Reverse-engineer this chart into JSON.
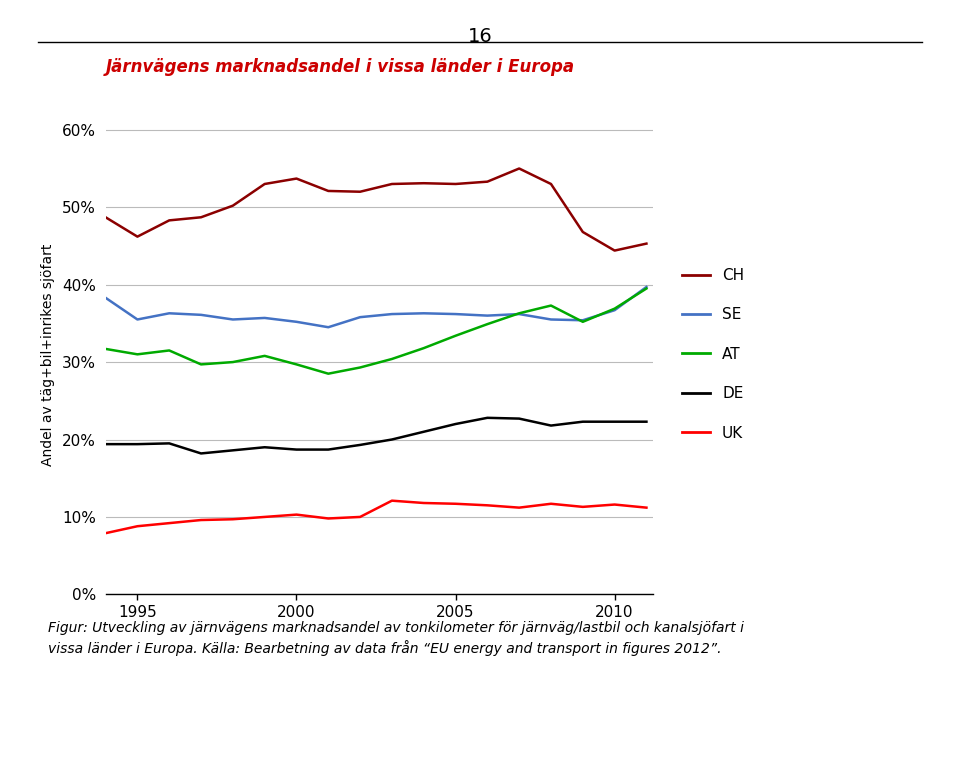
{
  "title": "Järnvägens marknadsandel i vissa länder i Europa",
  "title_color": "#CC0000",
  "ylabel": "Andel av täg+bil+inrikes sjöfart",
  "xlabel": "",
  "years": [
    1994,
    1995,
    1996,
    1997,
    1998,
    1999,
    2000,
    2001,
    2002,
    2003,
    2004,
    2005,
    2006,
    2007,
    2008,
    2009,
    2010,
    2011
  ],
  "CH": [
    0.487,
    0.462,
    0.483,
    0.487,
    0.502,
    0.53,
    0.537,
    0.521,
    0.52,
    0.53,
    0.531,
    0.53,
    0.533,
    0.55,
    0.53,
    0.468,
    0.444,
    0.453
  ],
  "SE": [
    0.383,
    0.355,
    0.363,
    0.361,
    0.355,
    0.357,
    0.352,
    0.345,
    0.358,
    0.362,
    0.363,
    0.362,
    0.36,
    0.362,
    0.355,
    0.354,
    0.367,
    0.397
  ],
  "AT": [
    0.317,
    0.31,
    0.315,
    0.297,
    0.3,
    0.308,
    0.297,
    0.285,
    0.293,
    0.304,
    0.318,
    0.334,
    0.349,
    0.363,
    0.373,
    0.352,
    0.369,
    0.395
  ],
  "DE": [
    0.194,
    0.194,
    0.195,
    0.182,
    0.186,
    0.19,
    0.187,
    0.187,
    0.193,
    0.2,
    0.21,
    0.22,
    0.228,
    0.227,
    0.218,
    0.223,
    0.223,
    0.223
  ],
  "UK": [
    0.079,
    0.088,
    0.092,
    0.096,
    0.097,
    0.1,
    0.103,
    0.098,
    0.1,
    0.121,
    0.118,
    0.117,
    0.115,
    0.112,
    0.117,
    0.113,
    0.116,
    0.112
  ],
  "CH_color": "#8B0000",
  "SE_color": "#4472C4",
  "AT_color": "#00AA00",
  "DE_color": "#000000",
  "UK_color": "#FF0000",
  "caption_line1": "Figur: Utveckling av järnvägens marknadsandel av tonkilometer för järnväg/lastbil och kanalsjöfart i",
  "caption_line2": "vissa länder i Europa. Källa: Bearbetning av data från “EU energy and transport in figures 2012”.",
  "page_number": "16",
  "ylim": [
    0.0,
    0.62
  ],
  "yticks": [
    0.0,
    0.1,
    0.2,
    0.3,
    0.4,
    0.5,
    0.6
  ],
  "ytick_labels": [
    "0%",
    "10%",
    "20%",
    "30%",
    "40%",
    "50%",
    "60%"
  ]
}
